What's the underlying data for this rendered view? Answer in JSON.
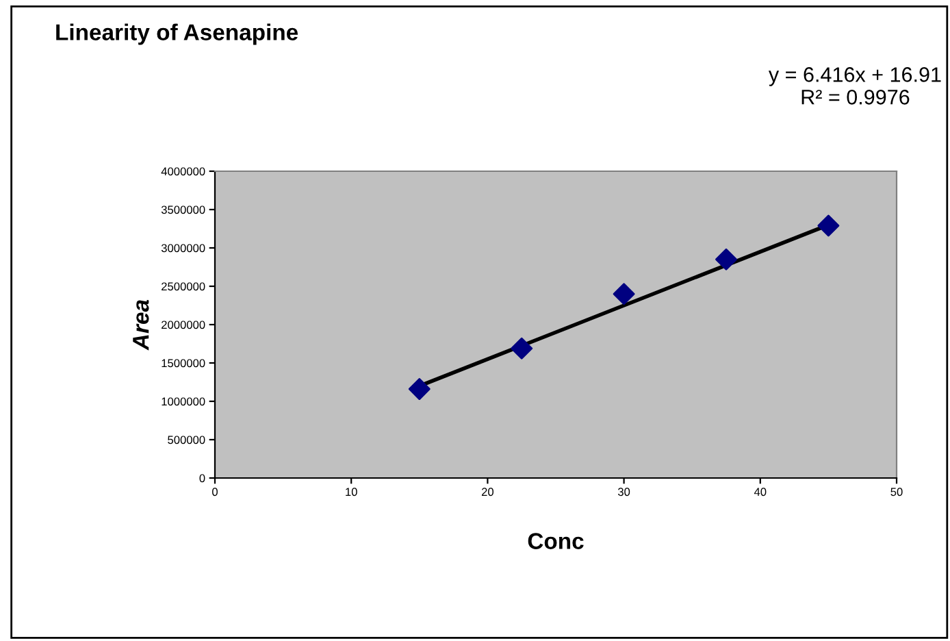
{
  "chart_data": {
    "type": "scatter",
    "title": "Linearity of Asenapine",
    "xlabel": "Conc",
    "ylabel": "Area",
    "annotations": [
      "y = 6.416x + 16.91\nR² = 0.9976"
    ],
    "series": [
      {
        "color": "#000080",
        "marker": "diamond",
        "x": [
          15,
          22.5,
          30,
          37.5,
          45
        ],
        "values": [
          1160000,
          1690000,
          2400000,
          2850000,
          3290000
        ]
      },
      {
        "type": "line",
        "color": "#000000",
        "marker": "none",
        "x": [
          15,
          45
        ],
        "values": [
          1200000,
          3300000
        ]
      }
    ],
    "xlim": [
      0,
      50
    ],
    "xticks": [
      0,
      10,
      20,
      30,
      40,
      50
    ],
    "ylim": [
      0,
      4000000
    ],
    "yticks": [
      0,
      500000,
      1000000,
      1500000,
      2000000,
      2500000,
      3000000,
      3500000,
      4000000
    ],
    "grid": false,
    "legend": false
  }
}
